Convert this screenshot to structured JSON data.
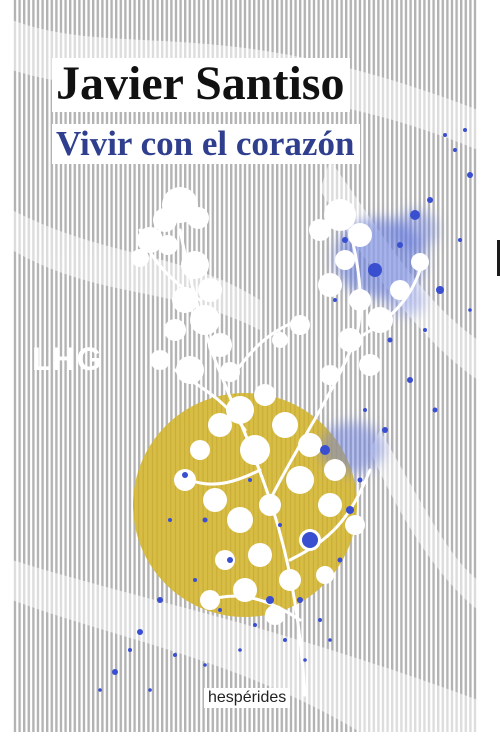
{
  "book": {
    "author": "Javier Santiso",
    "title": "Vivir con el corazón",
    "imprint": "LHG",
    "publisher": "hespérides"
  },
  "colors": {
    "background": "#ffffff",
    "stripes": "#b3b3b3",
    "sun": "#d8bd45",
    "ink_blue": "#2f3f8e",
    "splatter_blue": "#3a4fd0",
    "flowers": "#ffffff"
  },
  "icons": {
    "illustration": "white-flowers-over-yellow-sun-icon"
  }
}
